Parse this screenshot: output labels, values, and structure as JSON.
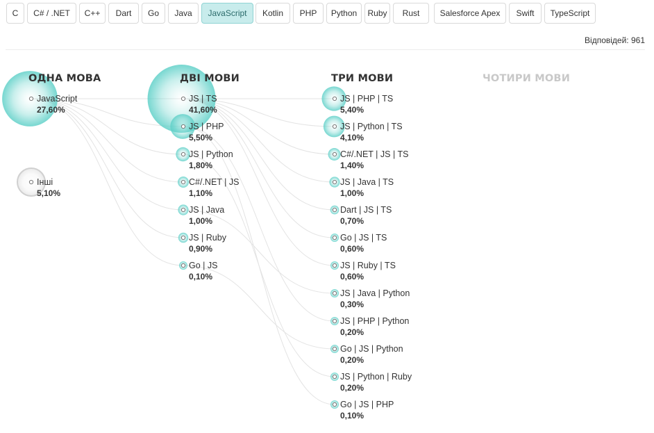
{
  "tabs": [
    {
      "label": "C",
      "active": false
    },
    {
      "label": "C# / .NET",
      "active": false
    },
    {
      "label": "C++",
      "active": false
    },
    {
      "label": "Dart",
      "active": false
    },
    {
      "label": "Go",
      "active": false
    },
    {
      "label": "Java",
      "active": false
    },
    {
      "label": "JavaScript",
      "active": true
    },
    {
      "label": "Kotlin",
      "active": false
    },
    {
      "label": "PHP",
      "active": false
    },
    {
      "label": "Python",
      "active": false
    },
    {
      "label": "Ruby",
      "active": false
    },
    {
      "label": "Rust",
      "active": false
    },
    {
      "label": "Salesforce Apex",
      "active": false
    },
    {
      "label": "Swift",
      "active": false
    },
    {
      "label": "TypeScript",
      "active": false
    }
  ],
  "responses_label": "Відповідей: 961",
  "colors": {
    "bubble": "#5fd0c8",
    "bubble_other": "#d9d9d9",
    "link": "#e3e3e3",
    "active_tab_bg": "#c8ecec"
  },
  "chart_data": {
    "type": "bubble-tree",
    "columns": [
      {
        "title": "ОДНА МОВА",
        "muted": false,
        "nodes": [
          {
            "label": "JavaScript",
            "value": "27,60%",
            "percent": 27.6
          },
          {
            "label": "Інші",
            "value": "5,10%",
            "percent": 5.1,
            "other": true
          }
        ]
      },
      {
        "title": "ДВІ МОВИ",
        "muted": false,
        "nodes": [
          {
            "label": "JS | TS",
            "value": "41,60%",
            "percent": 41.6
          },
          {
            "label": "JS | PHP",
            "value": "5,50%",
            "percent": 5.5
          },
          {
            "label": "JS | Python",
            "value": "1,80%",
            "percent": 1.8
          },
          {
            "label": "C#/.NET | JS",
            "value": "1,10%",
            "percent": 1.1
          },
          {
            "label": "JS | Java",
            "value": "1,00%",
            "percent": 1.0
          },
          {
            "label": "JS | Ruby",
            "value": "0,90%",
            "percent": 0.9
          },
          {
            "label": "Go | JS",
            "value": "0,10%",
            "percent": 0.1
          }
        ]
      },
      {
        "title": "ТРИ МОВИ",
        "muted": false,
        "nodes": [
          {
            "label": "JS | PHP | TS",
            "value": "5,40%",
            "percent": 5.4
          },
          {
            "label": "JS | Python | TS",
            "value": "4,10%",
            "percent": 4.1
          },
          {
            "label": "C#/.NET | JS | TS",
            "value": "1,40%",
            "percent": 1.4
          },
          {
            "label": "JS | Java | TS",
            "value": "1,00%",
            "percent": 1.0
          },
          {
            "label": "Dart | JS | TS",
            "value": "0,70%",
            "percent": 0.7
          },
          {
            "label": "Go | JS | TS",
            "value": "0,60%",
            "percent": 0.6
          },
          {
            "label": "JS | Ruby | TS",
            "value": "0,60%",
            "percent": 0.6
          },
          {
            "label": "JS | Java | Python",
            "value": "0,30%",
            "percent": 0.3
          },
          {
            "label": "JS | PHP | Python",
            "value": "0,20%",
            "percent": 0.2
          },
          {
            "label": "Go | JS | Python",
            "value": "0,20%",
            "percent": 0.2
          },
          {
            "label": "JS | Python | Ruby",
            "value": "0,20%",
            "percent": 0.2
          },
          {
            "label": "Go | JS | PHP",
            "value": "0,10%",
            "percent": 0.1
          }
        ]
      },
      {
        "title": "ЧОТИРИ МОВИ",
        "muted": true,
        "nodes": []
      }
    ]
  }
}
